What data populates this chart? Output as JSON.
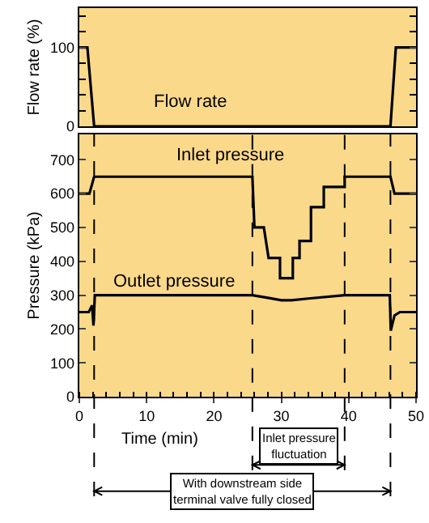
{
  "chart_data": [
    {
      "type": "line",
      "ylabel": "Flow rate (%)",
      "xlim": [
        0,
        50
      ],
      "ylim": [
        0,
        150
      ],
      "yticks": [
        0,
        100
      ],
      "tick_labels": "y",
      "series": [
        {
          "color": "#000000",
          "x": [
            0,
            1.2,
            2.2,
            46.2,
            47,
            50
          ],
          "values": [
            100,
            100,
            0,
            0,
            100,
            100
          ]
        }
      ],
      "annotations": [
        "Flow rate"
      ]
    },
    {
      "type": "line",
      "xlabel": "Time (min)",
      "ylabel": "Pressure (kPa)",
      "xlim": [
        0,
        50
      ],
      "xticks": [
        0,
        10,
        20,
        30,
        40,
        50
      ],
      "ylim": [
        0,
        775
      ],
      "yticks": [
        0,
        100,
        200,
        300,
        400,
        500,
        600,
        700
      ],
      "series": [
        {
          "color": "#000000",
          "x": [
            0,
            1.5,
            2.2,
            25.7,
            26,
            27.4,
            28.1,
            29.8,
            29.8,
            31.7,
            31.7,
            32.7,
            32.7,
            34.4,
            34.4,
            36.3,
            36.3,
            39.4,
            39.4,
            46.2,
            46.8,
            50
          ],
          "values": [
            600,
            600,
            650,
            650,
            500,
            500,
            410,
            410,
            350,
            350,
            410,
            410,
            460,
            460,
            560,
            560,
            620,
            620,
            650,
            650,
            600,
            600
          ]
        },
        {
          "color": "#000000",
          "x": [
            0,
            1.4,
            1.9,
            2.1,
            2.3,
            25.7,
            28,
            30,
            31.5,
            34,
            39.4,
            46.1,
            46.25,
            46.8,
            47.6,
            50
          ],
          "values": [
            250,
            250,
            270,
            210,
            300,
            300,
            292,
            285,
            285,
            290,
            300,
            300,
            195,
            240,
            250,
            250
          ]
        }
      ],
      "ref_lines": [
        {
          "axis": "x",
          "value": 2.2,
          "line_style": "dashed"
        },
        {
          "axis": "x",
          "value": 25.7,
          "line_style": "dashed"
        },
        {
          "axis": "x",
          "value": 39.4,
          "line_style": "dashed"
        },
        {
          "axis": "x",
          "value": 46.2,
          "line_style": "dashed"
        }
      ],
      "annotations": [
        "Inlet pressure",
        "Outlet pressure",
        "Inlet pressure\nfluctuation",
        "With downstream side\nterminal valve fully closed"
      ]
    }
  ]
}
